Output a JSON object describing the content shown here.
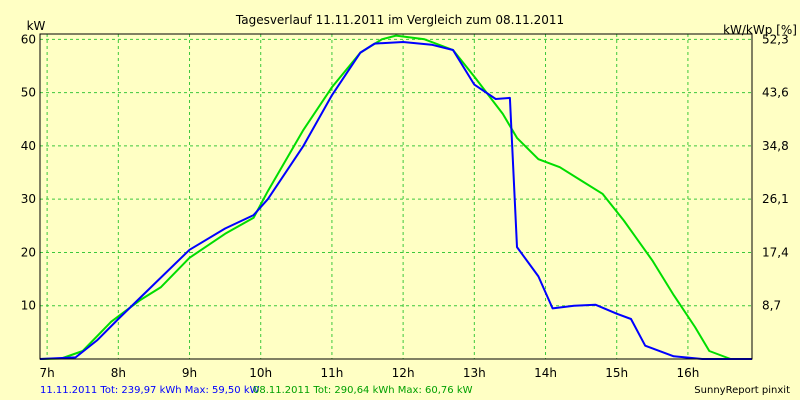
{
  "chart_data": {
    "type": "line",
    "title": "Tagesverlauf 11.11.2011 im Vergleich zum 08.11.2011",
    "ylabel_left": "kW",
    "ylabel_right": "kW/kWp [%]",
    "x_ticks": [
      "7h",
      "8h",
      "9h",
      "10h",
      "11h",
      "12h",
      "13h",
      "14h",
      "15h",
      "16h"
    ],
    "y_ticks_left": [
      "60",
      "50",
      "40",
      "30",
      "20",
      "10"
    ],
    "y_ticks_right": [
      "52,3",
      "43,6",
      "34,8",
      "26,1",
      "17,4",
      "8,7"
    ],
    "xlim": [
      6.9,
      16.9
    ],
    "ylim": [
      0,
      61
    ],
    "grid": true,
    "colors": {
      "background": "#FFFFC4",
      "grid": "#3CC83C",
      "frame": "#000000"
    },
    "series": [
      {
        "name": "11.11.2011",
        "color": "#0000FF",
        "points": [
          [
            6.9,
            0
          ],
          [
            7.4,
            0.3
          ],
          [
            7.7,
            3.5
          ],
          [
            8.0,
            7.5
          ],
          [
            8.5,
            14
          ],
          [
            9.0,
            20.5
          ],
          [
            9.5,
            24.5
          ],
          [
            9.9,
            27
          ],
          [
            10.1,
            30
          ],
          [
            10.6,
            40
          ],
          [
            11.0,
            49.5
          ],
          [
            11.4,
            57.5
          ],
          [
            11.6,
            59.2
          ],
          [
            12.0,
            59.5
          ],
          [
            12.4,
            59
          ],
          [
            12.7,
            58
          ],
          [
            13.0,
            51.5
          ],
          [
            13.3,
            48.8
          ],
          [
            13.5,
            49
          ],
          [
            13.6,
            21
          ],
          [
            13.9,
            15.5
          ],
          [
            14.1,
            9.5
          ],
          [
            14.4,
            10
          ],
          [
            14.7,
            10.2
          ],
          [
            15.0,
            8.5
          ],
          [
            15.2,
            7.5
          ],
          [
            15.4,
            2.5
          ],
          [
            15.8,
            0.5
          ],
          [
            16.2,
            0
          ],
          [
            16.9,
            0
          ]
        ]
      },
      {
        "name": "08.11.2011",
        "color": "#00DD00",
        "points": [
          [
            6.9,
            0
          ],
          [
            7.2,
            0.1
          ],
          [
            7.5,
            1.5
          ],
          [
            7.9,
            7
          ],
          [
            8.3,
            11
          ],
          [
            8.6,
            13.5
          ],
          [
            9.0,
            19
          ],
          [
            9.5,
            23.5
          ],
          [
            9.9,
            26.5
          ],
          [
            10.1,
            31.5
          ],
          [
            10.6,
            43
          ],
          [
            11.0,
            51
          ],
          [
            11.4,
            57.5
          ],
          [
            11.7,
            60
          ],
          [
            11.9,
            60.7
          ],
          [
            12.3,
            60
          ],
          [
            12.7,
            58
          ],
          [
            13.0,
            53
          ],
          [
            13.4,
            46
          ],
          [
            13.6,
            41.5
          ],
          [
            13.9,
            37.5
          ],
          [
            14.2,
            36
          ],
          [
            14.5,
            33.5
          ],
          [
            14.8,
            31
          ],
          [
            15.1,
            26
          ],
          [
            15.5,
            18.5
          ],
          [
            15.8,
            12
          ],
          [
            16.1,
            6
          ],
          [
            16.3,
            1.5
          ],
          [
            16.6,
            0
          ],
          [
            16.9,
            0
          ]
        ]
      }
    ]
  },
  "footer": {
    "series1_label": "11.11.2011 Tot: 239,97 kWh Max: 59,50 kW",
    "series2_label": "08.11.2011 Tot: 290,64 kWh Max: 60,76 kW",
    "credit": "SunnyReport pinxit"
  }
}
